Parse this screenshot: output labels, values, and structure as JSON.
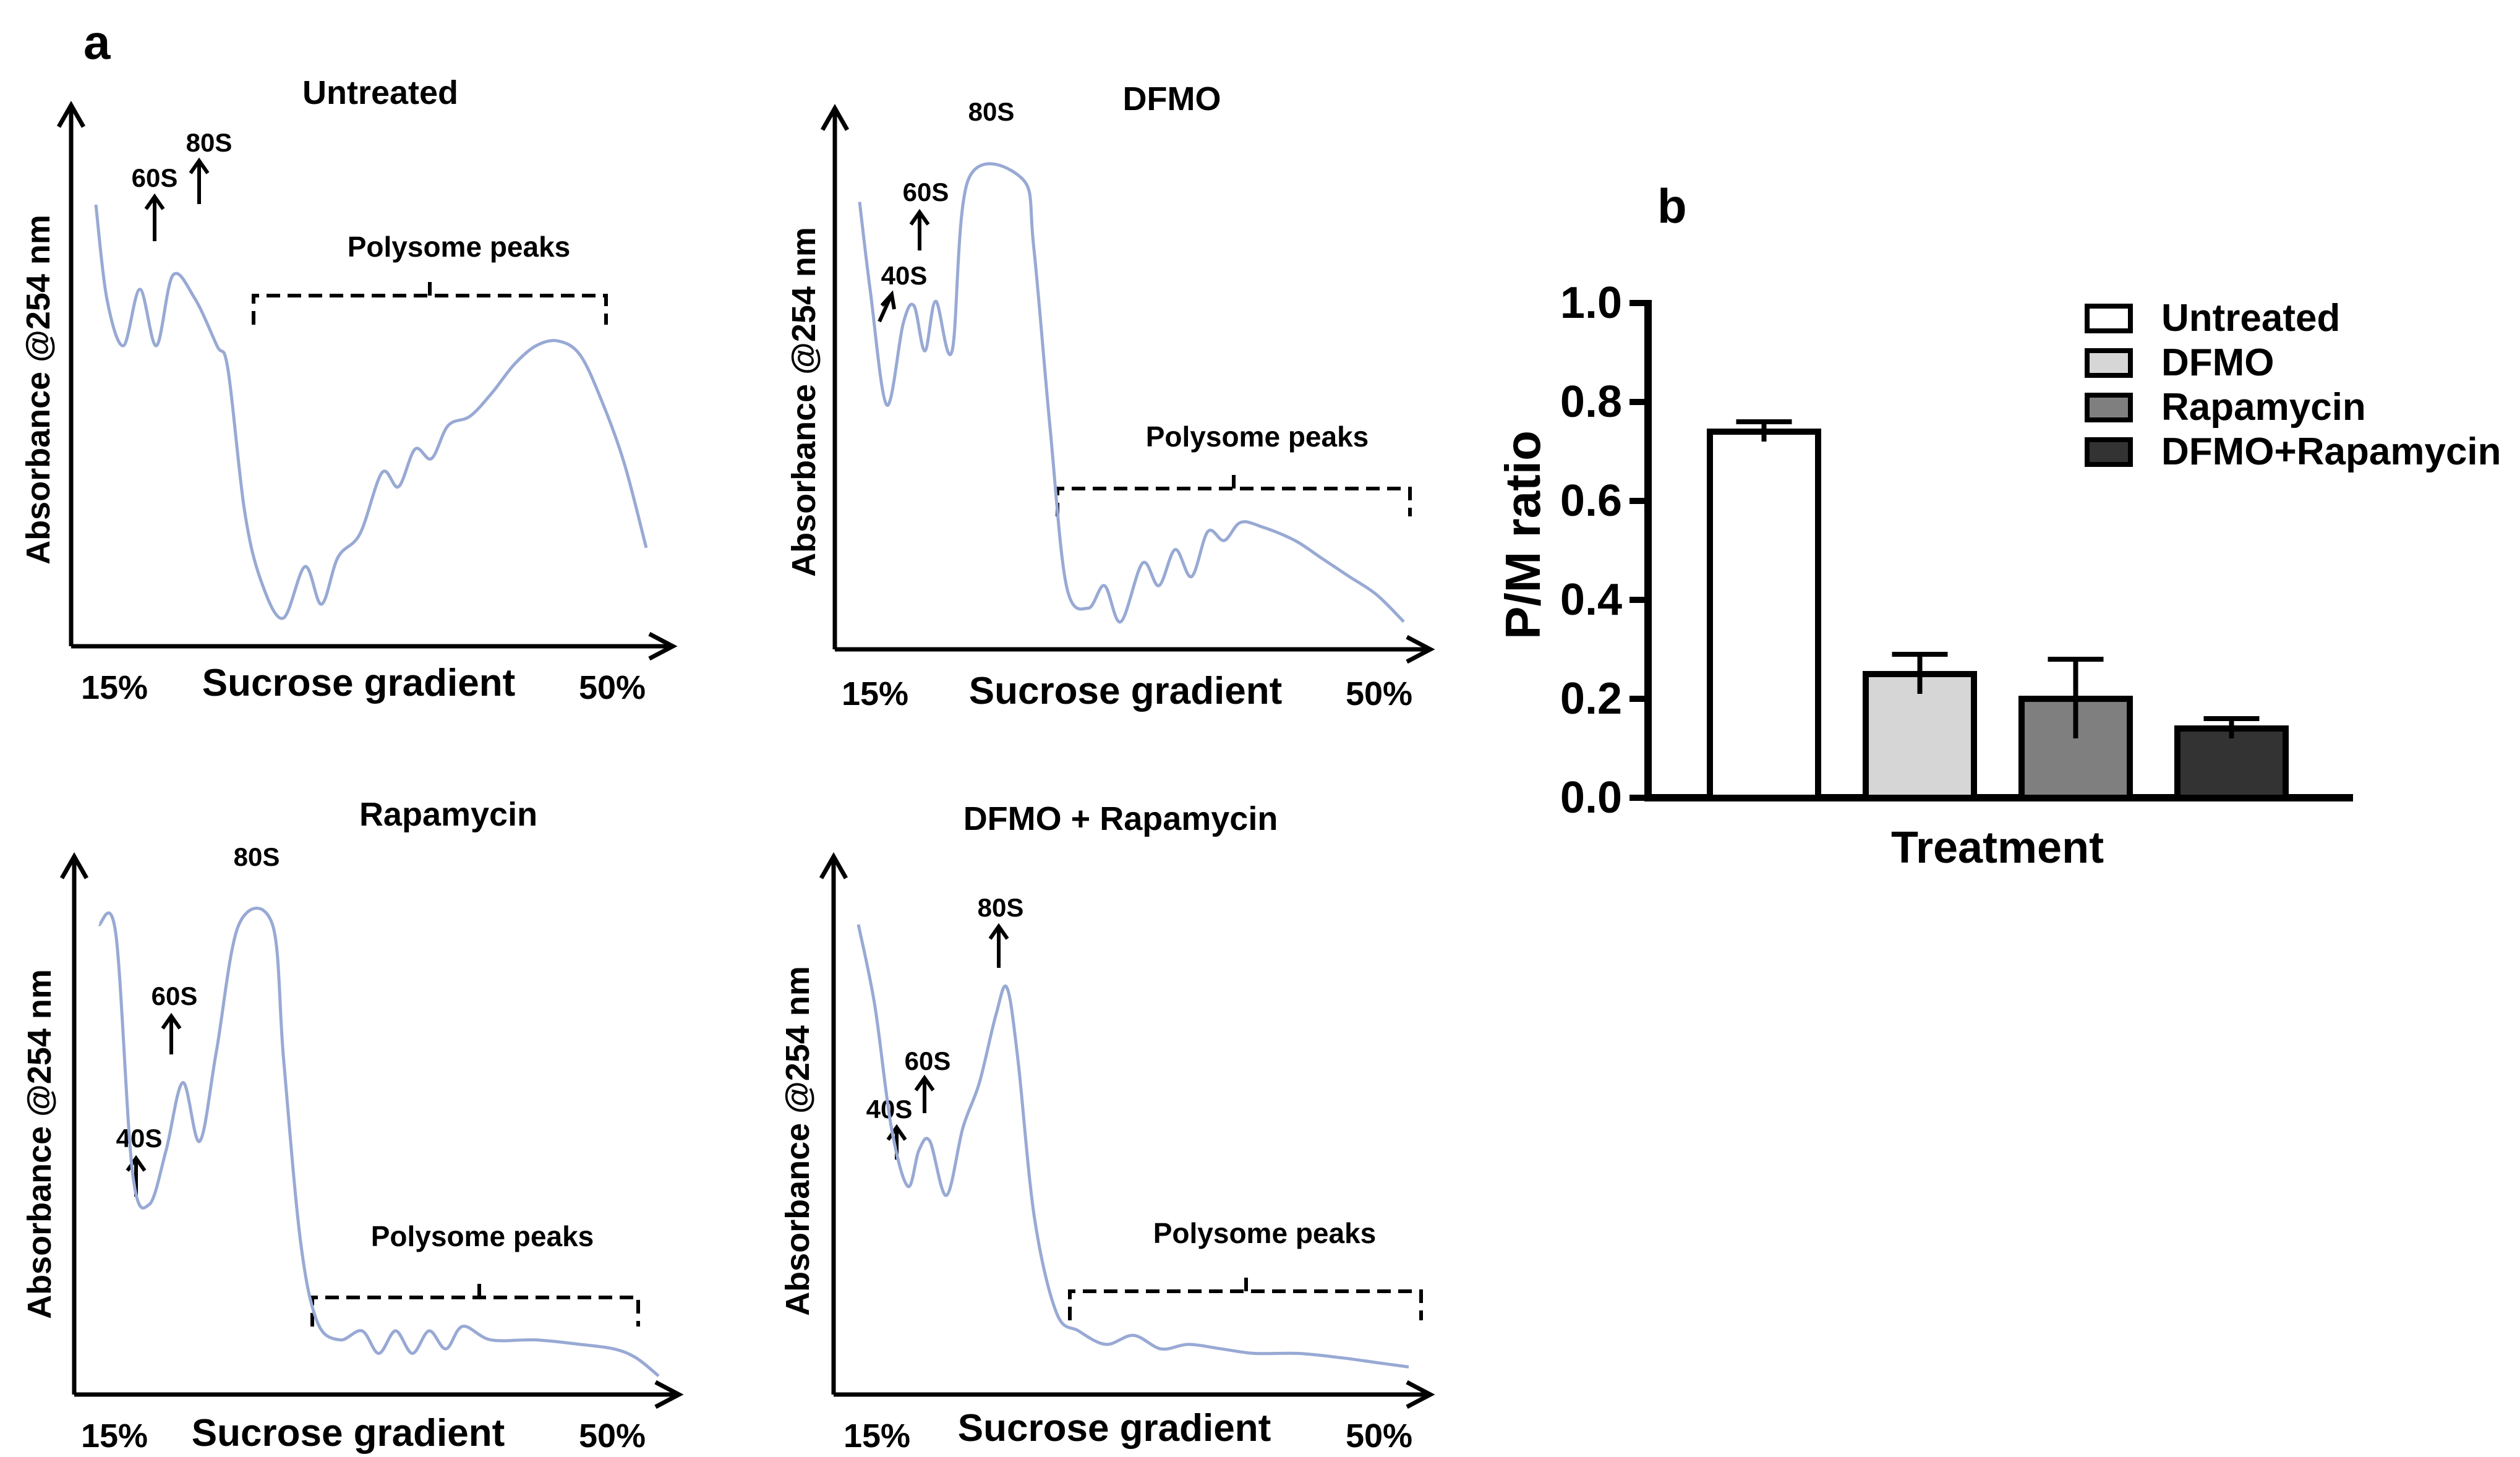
{
  "figure": {
    "panel_a_label": "a",
    "panel_b_label": "b"
  },
  "chart_data": [
    {
      "type": "line",
      "title": "Untreated",
      "ylabel": "Absorbance @254 nm",
      "xlabel": "Sucrose gradient",
      "x_start_label": "15%",
      "x_end_label": "50%",
      "peak_labels": [
        "60S",
        "80S"
      ],
      "annotation": "Polysome peaks",
      "profile": [
        [
          0,
          0.9
        ],
        [
          0.02,
          0.7
        ],
        [
          0.05,
          0.6
        ],
        [
          0.08,
          0.72
        ],
        [
          0.11,
          0.6
        ],
        [
          0.14,
          0.75
        ],
        [
          0.18,
          0.7
        ],
        [
          0.22,
          0.6
        ],
        [
          0.24,
          0.55
        ],
        [
          0.27,
          0.25
        ],
        [
          0.3,
          0.1
        ],
        [
          0.34,
          0.02
        ],
        [
          0.38,
          0.13
        ],
        [
          0.41,
          0.05
        ],
        [
          0.44,
          0.15
        ],
        [
          0.48,
          0.2
        ],
        [
          0.52,
          0.33
        ],
        [
          0.55,
          0.3
        ],
        [
          0.58,
          0.38
        ],
        [
          0.61,
          0.36
        ],
        [
          0.64,
          0.43
        ],
        [
          0.68,
          0.45
        ],
        [
          0.72,
          0.5
        ],
        [
          0.76,
          0.56
        ],
        [
          0.8,
          0.6
        ],
        [
          0.84,
          0.61
        ],
        [
          0.88,
          0.58
        ],
        [
          0.92,
          0.48
        ],
        [
          0.96,
          0.35
        ],
        [
          1.0,
          0.17
        ]
      ]
    },
    {
      "type": "line",
      "title": "DFMO",
      "ylabel": "Absorbance @254 nm",
      "xlabel": "Sucrose gradient",
      "x_start_label": "15%",
      "x_end_label": "50%",
      "peak_labels": [
        "40S",
        "60S",
        "80S"
      ],
      "annotation": "Polysome peaks",
      "profile": [
        [
          0,
          0.95
        ],
        [
          0.02,
          0.75
        ],
        [
          0.05,
          0.5
        ],
        [
          0.08,
          0.68
        ],
        [
          0.1,
          0.72
        ],
        [
          0.12,
          0.62
        ],
        [
          0.14,
          0.73
        ],
        [
          0.17,
          0.62
        ],
        [
          0.2,
          1.0
        ],
        [
          0.3,
          1.0
        ],
        [
          0.32,
          0.85
        ],
        [
          0.35,
          0.45
        ],
        [
          0.38,
          0.1
        ],
        [
          0.42,
          0.05
        ],
        [
          0.45,
          0.1
        ],
        [
          0.48,
          0.02
        ],
        [
          0.52,
          0.15
        ],
        [
          0.55,
          0.1
        ],
        [
          0.58,
          0.18
        ],
        [
          0.61,
          0.12
        ],
        [
          0.64,
          0.22
        ],
        [
          0.67,
          0.2
        ],
        [
          0.7,
          0.24
        ],
        [
          0.74,
          0.23
        ],
        [
          0.8,
          0.2
        ],
        [
          0.85,
          0.16
        ],
        [
          0.9,
          0.12
        ],
        [
          0.95,
          0.08
        ],
        [
          1.0,
          0.02
        ]
      ]
    },
    {
      "type": "line",
      "title": "Rapamycin",
      "ylabel": "Absorbance @254 nm",
      "xlabel": "Sucrose gradient",
      "x_start_label": "15%",
      "x_end_label": "50%",
      "peak_labels": [
        "40S",
        "60S",
        "80S"
      ],
      "annotation": "Polysome peaks",
      "profile": [
        [
          0,
          1.0
        ],
        [
          0.03,
          0.98
        ],
        [
          0.06,
          0.45
        ],
        [
          0.09,
          0.38
        ],
        [
          0.12,
          0.5
        ],
        [
          0.15,
          0.65
        ],
        [
          0.18,
          0.52
        ],
        [
          0.21,
          0.72
        ],
        [
          0.25,
          1.0
        ],
        [
          0.31,
          1.0
        ],
        [
          0.33,
          0.7
        ],
        [
          0.36,
          0.3
        ],
        [
          0.39,
          0.12
        ],
        [
          0.43,
          0.08
        ],
        [
          0.47,
          0.1
        ],
        [
          0.5,
          0.05
        ],
        [
          0.53,
          0.1
        ],
        [
          0.56,
          0.05
        ],
        [
          0.59,
          0.1
        ],
        [
          0.62,
          0.06
        ],
        [
          0.65,
          0.11
        ],
        [
          0.7,
          0.08
        ],
        [
          0.78,
          0.08
        ],
        [
          0.86,
          0.07
        ],
        [
          0.92,
          0.06
        ],
        [
          0.96,
          0.04
        ],
        [
          1.0,
          0.0
        ]
      ]
    },
    {
      "type": "line",
      "title": "DFMO + Rapamycin",
      "ylabel": "Absorbance @254 nm",
      "xlabel": "Sucrose gradient",
      "x_start_label": "15%",
      "x_end_label": "50%",
      "peak_labels": [
        "40S",
        "60S",
        "80S"
      ],
      "annotation": "Polysome peaks",
      "profile": [
        [
          0,
          1.0
        ],
        [
          0.03,
          0.82
        ],
        [
          0.06,
          0.55
        ],
        [
          0.09,
          0.42
        ],
        [
          0.11,
          0.5
        ],
        [
          0.13,
          0.52
        ],
        [
          0.16,
          0.4
        ],
        [
          0.19,
          0.55
        ],
        [
          0.22,
          0.65
        ],
        [
          0.25,
          0.8
        ],
        [
          0.27,
          0.86
        ],
        [
          0.29,
          0.7
        ],
        [
          0.32,
          0.35
        ],
        [
          0.36,
          0.14
        ],
        [
          0.4,
          0.1
        ],
        [
          0.45,
          0.07
        ],
        [
          0.5,
          0.09
        ],
        [
          0.55,
          0.06
        ],
        [
          0.6,
          0.07
        ],
        [
          0.66,
          0.06
        ],
        [
          0.72,
          0.05
        ],
        [
          0.8,
          0.05
        ],
        [
          0.88,
          0.04
        ],
        [
          0.94,
          0.03
        ],
        [
          1.0,
          0.02
        ]
      ]
    },
    {
      "type": "bar",
      "title": "",
      "xlabel": "Treatment",
      "ylabel": "P/M ratio",
      "ylim": [
        0,
        1.0
      ],
      "yticks": [
        "0.0",
        "0.2",
        "0.4",
        "0.6",
        "0.8",
        "1.0"
      ],
      "categories": [
        "Untreated",
        "DFMO",
        "Rapamycin",
        "DFMO+Rapamycin"
      ],
      "values": [
        0.74,
        0.25,
        0.2,
        0.14
      ],
      "errors": [
        0.02,
        0.04,
        0.08,
        0.02
      ],
      "colors": [
        "#ffffff",
        "#d6d6d6",
        "#7f7f7f",
        "#333333"
      ],
      "legend": [
        "Untreated",
        "DFMO",
        "Rapamycin",
        "DFMO+Rapamycin"
      ]
    }
  ]
}
